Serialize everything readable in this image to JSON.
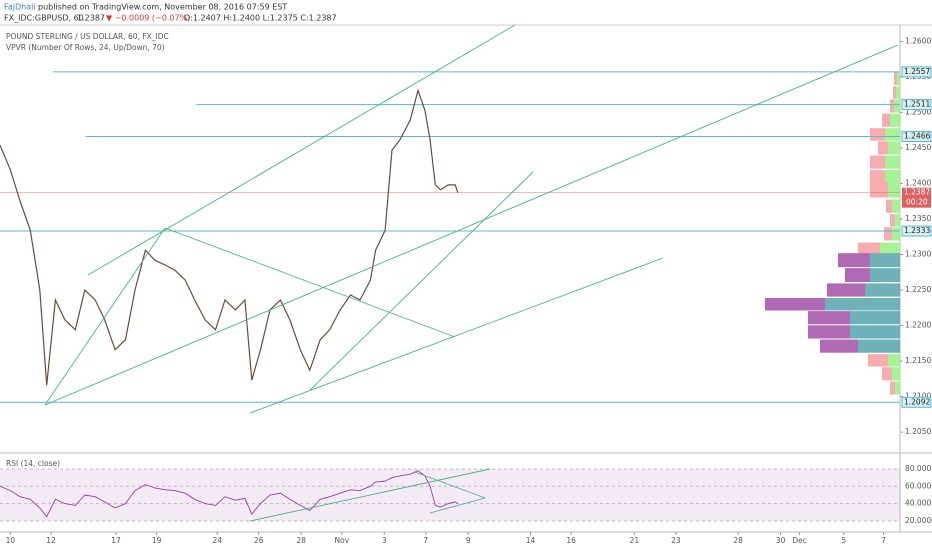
{
  "header": {
    "publisher": "FajDhaii",
    "published": "published on TradingView.com, November 08, 2016 07:59 EST",
    "symbol": "FX_IDC:GBPUSD, 60",
    "price": "1.2387",
    "change": "▼ −0.0009 (−0.07%)",
    "ohlc": "O:1.2407 H:1.2400 L:1.2375 C:1.2387"
  },
  "chart_data": [
    {
      "type": "line",
      "title": "POUND STERLING / US DOLLAR, 60, FX_IDC",
      "subtitle": "VPVR (Number Of Rows, 24, Up/Down, 70)",
      "color": "#6b4a3a",
      "x": [
        0,
        12,
        23,
        35,
        46,
        54,
        64,
        75,
        87,
        98,
        110,
        121,
        133,
        145,
        156,
        168,
        179,
        191,
        202,
        214,
        225,
        237,
        249,
        260,
        272,
        283,
        291,
        301,
        312,
        324,
        335,
        347,
        358,
        370,
        381,
        393,
        405,
        416,
        428,
        434,
        445,
        453,
        462,
        474,
        483,
        491,
        497,
        503,
        509,
        518,
        526,
        529
      ],
      "values": [
        1.2454,
        1.2419,
        1.2376,
        1.2334,
        1.225,
        1.2116,
        1.2236,
        1.2208,
        1.2194,
        1.225,
        1.2236,
        1.2208,
        1.2166,
        1.218,
        1.225,
        1.2306,
        1.2292,
        1.2285,
        1.2278,
        1.2264,
        1.2236,
        1.2208,
        1.2194,
        1.2236,
        1.2222,
        1.2236,
        1.2123,
        1.2166,
        1.2222,
        1.2236,
        1.2208,
        1.2166,
        1.2137,
        1.218,
        1.2194,
        1.2222,
        1.2243,
        1.2236,
        1.2264,
        1.2306,
        1.2334,
        1.2447,
        1.2461,
        1.2489,
        1.2531,
        1.2503,
        1.2461,
        1.2398,
        1.2391,
        1.2398,
        1.2398,
        1.2387
      ],
      "xlim": [
        0,
        1040
      ],
      "ylim": [
        1.2022,
        1.2623
      ],
      "yticks": [
        {
          "value": 1.26,
          "label": "1.2600"
        },
        {
          "value": 1.255,
          "label": "1.2550"
        },
        {
          "value": 1.25,
          "label": "1.2500"
        },
        {
          "value": 1.245,
          "label": "1.2450"
        },
        {
          "value": 1.24,
          "label": "1.2400"
        },
        {
          "value": 1.235,
          "label": "1.2350"
        },
        {
          "value": 1.23,
          "label": "1.2300"
        },
        {
          "value": 1.225,
          "label": "1.2250"
        },
        {
          "value": 1.22,
          "label": "1.2200"
        },
        {
          "value": 1.215,
          "label": "1.2150"
        },
        {
          "value": 1.21,
          "label": "1.2100"
        },
        {
          "value": 1.205,
          "label": "1.2050"
        }
      ],
      "xticks": [
        {
          "value": 12,
          "label": "10"
        },
        {
          "value": 59,
          "label": "12"
        },
        {
          "value": 134,
          "label": "17"
        },
        {
          "value": 181,
          "label": "19"
        },
        {
          "value": 251,
          "label": "24"
        },
        {
          "value": 299,
          "label": "26"
        },
        {
          "value": 348,
          "label": "28"
        },
        {
          "value": 395,
          "label": "Nov"
        },
        {
          "value": 444,
          "label": "3"
        },
        {
          "value": 492,
          "label": "7"
        },
        {
          "value": 541,
          "label": "9"
        },
        {
          "value": 613,
          "label": "14"
        },
        {
          "value": 660,
          "label": "16"
        },
        {
          "value": 733,
          "label": "21"
        },
        {
          "value": 781,
          "label": "23"
        },
        {
          "value": 853,
          "label": "28"
        },
        {
          "value": 902,
          "label": "30"
        },
        {
          "value": 924,
          "label": "Dec"
        },
        {
          "value": 975,
          "label": "5"
        },
        {
          "value": 1021,
          "label": "7"
        }
      ],
      "levels": [
        1.2557,
        1.2511,
        1.2466,
        1.2333,
        1.2092
      ],
      "level_starts": [
        61,
        227,
        99,
        0,
        0
      ],
      "level_color": "#5bb8c8",
      "last_price": 1.2387,
      "last_color": "#e06060",
      "countdown": "00:20",
      "volume_profile": {
        "prices": [
          1.2548,
          1.2528,
          1.2509,
          1.2489,
          1.2469,
          1.245,
          1.243,
          1.241,
          1.2391,
          1.2368,
          1.2348,
          1.2329,
          1.2309,
          1.2292,
          1.2271,
          1.225,
          1.223,
          1.2211,
          1.2191,
          1.2171,
          1.2151,
          1.2132,
          1.2112
        ],
        "up": [
          3,
          4,
          6,
          10,
          15,
          12,
          15,
          15,
          12,
          8,
          5,
          8,
          20,
          30,
          30,
          35,
          75,
          50,
          50,
          42,
          12,
          8,
          5
        ],
        "down": [
          3,
          3,
          4,
          8,
          15,
          10,
          15,
          15,
          18,
          6,
          5,
          8,
          22,
          32,
          25,
          38,
          60,
          42,
          42,
          38,
          20,
          10,
          5
        ],
        "up_color": "#9cf28a",
        "down_color": "#f7a3a6",
        "va_up_color": "#5ea9b0",
        "va_down_color": "#a65aab",
        "value_area": [
          1.2165,
          1.23
        ]
      }
    },
    {
      "type": "rsi",
      "title": "RSI (14, close)",
      "color": "#9c3aa8",
      "x": [
        0,
        12,
        23,
        35,
        46,
        54,
        64,
        75,
        87,
        98,
        110,
        121,
        133,
        145,
        156,
        168,
        179,
        191,
        202,
        214,
        225,
        237,
        249,
        260,
        272,
        283,
        291,
        301,
        312,
        324,
        335,
        347,
        358,
        370,
        381,
        393,
        405,
        416,
        428,
        434,
        445,
        453,
        462,
        474,
        483,
        491,
        497,
        503,
        509,
        518,
        526,
        529
      ],
      "values": [
        60,
        55,
        48,
        45,
        35,
        25,
        45,
        40,
        38,
        50,
        48,
        42,
        35,
        40,
        55,
        62,
        58,
        56,
        55,
        52,
        45,
        40,
        38,
        48,
        44,
        46,
        28,
        40,
        50,
        52,
        45,
        38,
        32,
        45,
        48,
        52,
        56,
        55,
        60,
        65,
        66,
        70,
        72,
        74,
        78,
        72,
        60,
        38,
        36,
        40,
        42,
        40
      ],
      "xlim": [
        0,
        1040
      ],
      "ylim": [
        7.3,
        96.1
      ],
      "band": [
        20,
        80
      ],
      "yticks": [
        {
          "value": 20,
          "label": "20.0000"
        },
        {
          "value": 40,
          "label": "40.0000"
        },
        {
          "value": 60,
          "label": "60.0000"
        },
        {
          "value": 80,
          "label": "80.0000"
        }
      ]
    }
  ]
}
